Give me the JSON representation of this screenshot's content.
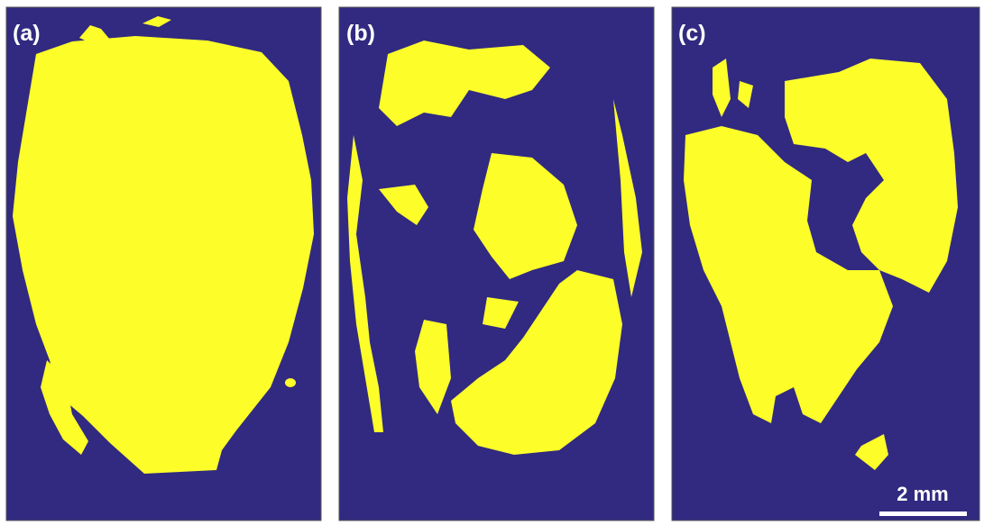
{
  "panels": [
    {
      "label": "(a)"
    },
    {
      "label": "(b)"
    },
    {
      "label": "(c)"
    }
  ],
  "scale_bar": {
    "label": "2 mm"
  }
}
